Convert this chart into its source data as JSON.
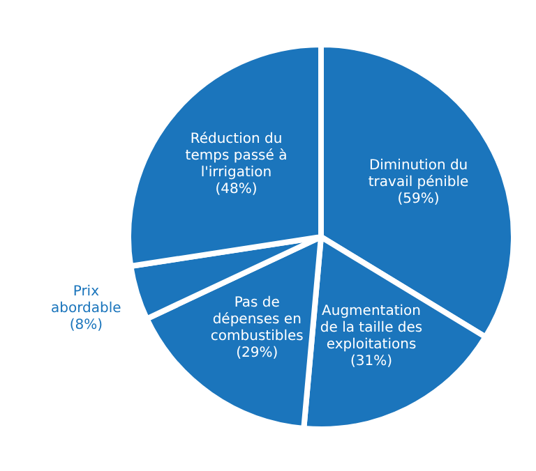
{
  "chart_data": {
    "type": "pie",
    "categories": [
      "Diminution du travail pénible",
      "Augmentation de la taille des exploitations",
      "Pas de dépenses en combustibles",
      "Prix abordable",
      "Réduction du temps passé à l'irrigation"
    ],
    "values": [
      59,
      31,
      29,
      8,
      48
    ],
    "value_labels": [
      "(59%)",
      "(31%)",
      "(29%)",
      "(8%)",
      "(48%)"
    ],
    "colors": [
      "#1b75bc",
      "#1b75bc",
      "#1b75bc",
      "#1b75bc",
      "#1b75bc"
    ],
    "legend": false
  }
}
